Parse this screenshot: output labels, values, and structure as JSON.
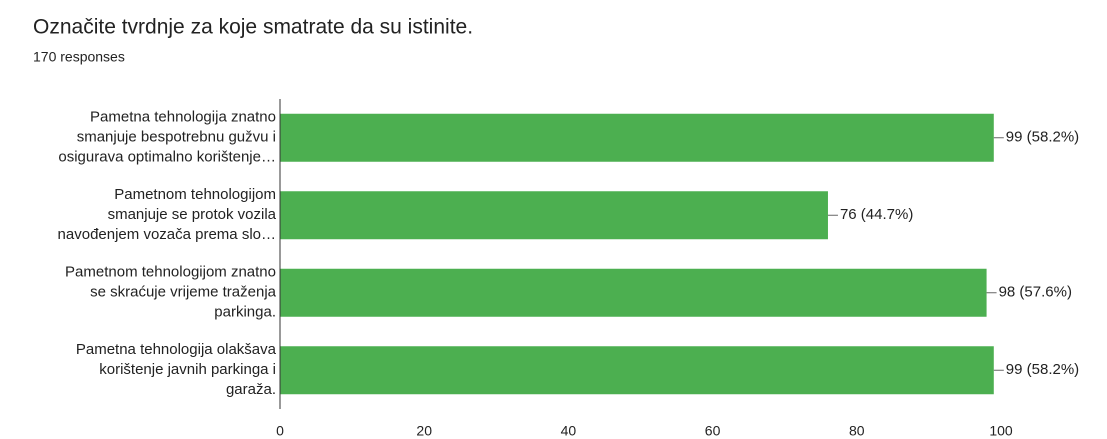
{
  "chart_data": {
    "type": "hbar",
    "title": "Označite tvrdnje za koje smatrate da su istinite.",
    "subtitle": "170 responses",
    "categories": [
      [
        "Pametna tehnologija znatno",
        "smanjuje bespotrebnu gužvu i",
        "osigurava optimalno korištenje…"
      ],
      [
        "Pametnom tehnologijom",
        "smanjuje se protok vozila",
        "navođenjem vozača prema slo…"
      ],
      [
        "Pametnom tehnologijom znatno",
        "se skraćuje vrijeme traženja",
        "parkinga."
      ],
      [
        "Pametna tehnologija olakšava",
        "korištenje javnih parkinga i",
        "garaža."
      ]
    ],
    "values": [
      99,
      76,
      98,
      99
    ],
    "value_labels": [
      "99 (58.2%)",
      "76 (44.7%)",
      "98 (57.6%)",
      "99 (58.2%)"
    ],
    "color": "#4caf50",
    "xlim": [
      0,
      100
    ],
    "xticks": [
      0,
      20,
      40,
      60,
      80,
      100
    ],
    "grid": false
  }
}
